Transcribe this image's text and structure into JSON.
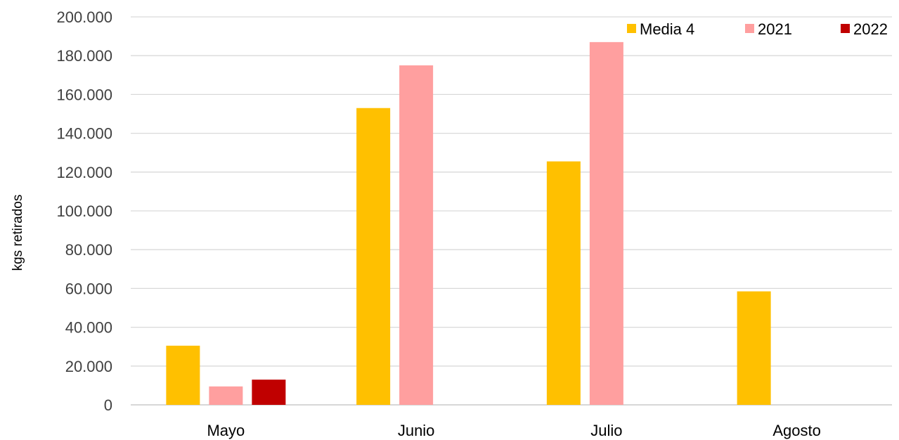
{
  "chart_data": {
    "type": "bar",
    "ylabel": "kgs retirados",
    "xlabel": "",
    "categories": [
      "Mayo",
      "Junio",
      "Julio",
      "Agosto"
    ],
    "series": [
      {
        "name": "Media 4",
        "color": "#FFC000",
        "values": [
          30500,
          153000,
          125500,
          58500
        ]
      },
      {
        "name": "2021",
        "color": "#FF9F9F",
        "values": [
          9500,
          175000,
          187000,
          null
        ]
      },
      {
        "name": "2022",
        "color": "#C00000",
        "values": [
          13000,
          null,
          null,
          null
        ]
      }
    ],
    "ylim": [
      0,
      200000
    ],
    "ytick_labels": [
      "0",
      "20.000",
      "40.000",
      "60.000",
      "80.000",
      "100.000",
      "120.000",
      "140.000",
      "160.000",
      "180.000",
      "200.000"
    ],
    "grid": true,
    "legend_position": "top-right"
  }
}
